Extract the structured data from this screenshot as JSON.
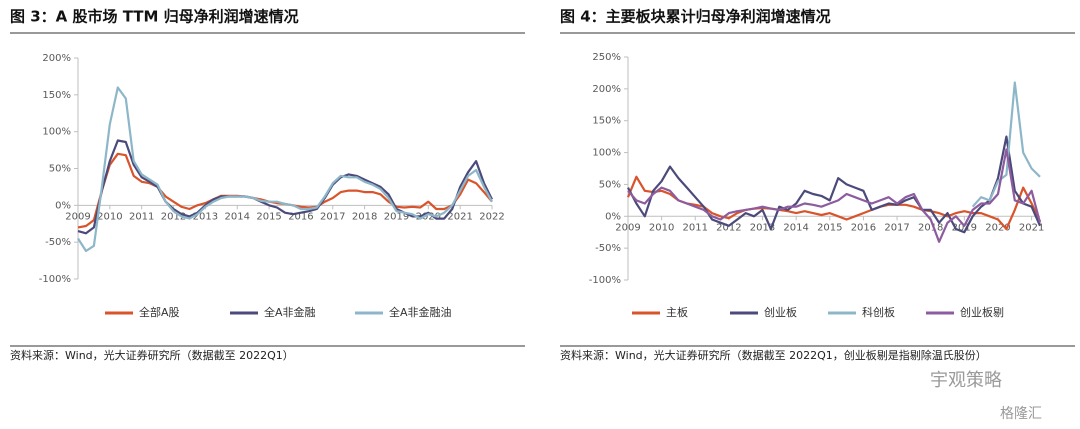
{
  "chart_data": [
    {
      "type": "line",
      "title": "图 3：A 股市场 TTM 归母净利润增速情况",
      "source": "资料来源：Wind，光大证券研究所（数据截至 2022Q1）",
      "x": [
        2009,
        2009.25,
        2009.5,
        2009.75,
        2010,
        2010.25,
        2010.5,
        2010.75,
        2011,
        2011.25,
        2011.5,
        2011.75,
        2012,
        2012.25,
        2012.5,
        2012.75,
        2013,
        2013.25,
        2013.5,
        2013.75,
        2014,
        2014.25,
        2014.5,
        2014.75,
        2015,
        2015.25,
        2015.5,
        2015.75,
        2016,
        2016.25,
        2016.5,
        2016.75,
        2017,
        2017.25,
        2017.5,
        2017.75,
        2018,
        2018.25,
        2018.5,
        2018.75,
        2019,
        2019.25,
        2019.5,
        2019.75,
        2020,
        2020.25,
        2020.5,
        2020.75,
        2021,
        2021.25,
        2021.5,
        2021.75,
        2022
      ],
      "xlim": [
        2009,
        2022
      ],
      "xticks": [
        2009,
        2010,
        2011,
        2012,
        2013,
        2014,
        2015,
        2016,
        2017,
        2018,
        2019,
        2020,
        2021,
        2022
      ],
      "ylim": [
        -100,
        200
      ],
      "yticks": [
        {
          "value": -100,
          "label": "-100%"
        },
        {
          "value": -50,
          "label": "-50%"
        },
        {
          "value": 0,
          "label": "0%"
        },
        {
          "value": 50,
          "label": "50%"
        },
        {
          "value": 100,
          "label": "100%"
        },
        {
          "value": 150,
          "label": "150%"
        },
        {
          "value": 200,
          "label": "200%"
        }
      ],
      "series": [
        {
          "name": "全部A股",
          "color": "#d9532b",
          "values": [
            -30,
            -28,
            -20,
            20,
            55,
            70,
            68,
            40,
            32,
            30,
            25,
            12,
            5,
            -2,
            -5,
            0,
            3,
            8,
            13,
            13,
            13,
            12,
            10,
            8,
            5,
            3,
            2,
            0,
            -2,
            -3,
            -2,
            5,
            10,
            18,
            20,
            20,
            18,
            18,
            15,
            5,
            -2,
            -3,
            -2,
            -3,
            5,
            -5,
            -5,
            0,
            15,
            35,
            30,
            18,
            5
          ]
        },
        {
          "name": "全A非金融",
          "color": "#4b4a7a",
          "values": [
            -35,
            -38,
            -30,
            20,
            60,
            88,
            86,
            55,
            38,
            32,
            25,
            5,
            -5,
            -12,
            -15,
            -10,
            0,
            8,
            12,
            12,
            12,
            12,
            10,
            5,
            0,
            -3,
            -10,
            -12,
            -10,
            -8,
            -5,
            10,
            28,
            38,
            42,
            40,
            35,
            30,
            25,
            15,
            -5,
            -10,
            -15,
            -15,
            -10,
            -18,
            -18,
            -5,
            25,
            45,
            60,
            30,
            8
          ]
        },
        {
          "name": "全A非金融油",
          "color": "#8db7c9",
          "values": [
            -45,
            -62,
            -55,
            25,
            110,
            160,
            145,
            60,
            42,
            35,
            28,
            5,
            -8,
            -15,
            -18,
            -12,
            -2,
            5,
            10,
            12,
            12,
            12,
            10,
            6,
            5,
            5,
            2,
            0,
            -5,
            -5,
            -3,
            12,
            30,
            40,
            38,
            38,
            32,
            28,
            22,
            10,
            -8,
            -10,
            -12,
            -18,
            -12,
            -15,
            -10,
            0,
            20,
            40,
            48,
            25,
            5
          ]
        }
      ]
    },
    {
      "type": "line",
      "title": "图 4：主要板块累计归母净利润增速情况",
      "source": "资料来源：Wind，光大证券研究所（数据截至 2022Q1，创业板剔是指剔除温氏股份）",
      "x": [
        2009,
        2009.25,
        2009.5,
        2009.75,
        2010,
        2010.25,
        2010.5,
        2010.75,
        2011,
        2011.25,
        2011.5,
        2011.75,
        2012,
        2012.25,
        2012.5,
        2012.75,
        2013,
        2013.25,
        2013.5,
        2013.75,
        2014,
        2014.25,
        2014.5,
        2014.75,
        2015,
        2015.25,
        2015.5,
        2015.75,
        2016,
        2016.25,
        2016.5,
        2016.75,
        2017,
        2017.25,
        2017.5,
        2017.75,
        2018,
        2018.25,
        2018.5,
        2018.75,
        2019,
        2019.25,
        2019.5,
        2019.75,
        2020,
        2020.25,
        2020.5,
        2020.75,
        2021,
        2021.25
      ],
      "xlim": [
        2009,
        2021.25
      ],
      "xticks": [
        2009,
        2010,
        2011,
        2012,
        2013,
        2014,
        2015,
        2016,
        2017,
        2018,
        2019,
        2020,
        2021
      ],
      "ylim": [
        -100,
        250
      ],
      "yticks": [
        {
          "value": -100,
          "label": "-100%"
        },
        {
          "value": -50,
          "label": "-50%"
        },
        {
          "value": 0,
          "label": "0%"
        },
        {
          "value": 50,
          "label": "50%"
        },
        {
          "value": 100,
          "label": "100%"
        },
        {
          "value": 150,
          "label": "150%"
        },
        {
          "value": 200,
          "label": "200%"
        },
        {
          "value": 250,
          "label": "250%"
        }
      ],
      "series": [
        {
          "name": "主板",
          "color": "#d9532b",
          "values": [
            30,
            62,
            40,
            38,
            40,
            35,
            25,
            20,
            18,
            15,
            5,
            0,
            -3,
            5,
            10,
            12,
            13,
            12,
            10,
            8,
            5,
            8,
            5,
            2,
            5,
            0,
            -5,
            0,
            5,
            10,
            15,
            18,
            18,
            18,
            15,
            10,
            8,
            5,
            0,
            5,
            8,
            5,
            5,
            0,
            -5,
            -20,
            10,
            45,
            20,
            -8
          ]
        },
        {
          "name": "创业板",
          "color": "#4b4a7a",
          "values": [
            45,
            20,
            0,
            40,
            55,
            78,
            60,
            45,
            30,
            15,
            -5,
            -10,
            -15,
            -5,
            5,
            0,
            10,
            -20,
            15,
            10,
            20,
            40,
            35,
            32,
            25,
            60,
            50,
            45,
            40,
            10,
            15,
            20,
            18,
            25,
            30,
            10,
            10,
            -10,
            5,
            -20,
            -25,
            0,
            15,
            25,
            60,
            125,
            40,
            20,
            15,
            -15
          ]
        },
        {
          "name": "科创板",
          "color": "#8db7c9",
          "values": [
            null,
            null,
            null,
            null,
            null,
            null,
            null,
            null,
            null,
            null,
            null,
            null,
            null,
            null,
            null,
            null,
            null,
            null,
            null,
            null,
            null,
            null,
            null,
            null,
            null,
            null,
            null,
            null,
            null,
            null,
            null,
            null,
            null,
            null,
            null,
            null,
            null,
            null,
            null,
            null,
            null,
            15,
            30,
            25,
            55,
            65,
            210,
            100,
            75,
            62
          ]
        },
        {
          "name": "创业板剔",
          "color": "#8c5c9e",
          "values": [
            40,
            25,
            20,
            35,
            45,
            40,
            25,
            20,
            15,
            10,
            0,
            -5,
            5,
            8,
            10,
            12,
            15,
            12,
            10,
            15,
            15,
            20,
            18,
            15,
            20,
            25,
            35,
            30,
            25,
            20,
            25,
            30,
            20,
            30,
            35,
            10,
            -5,
            -40,
            -10,
            0,
            -15,
            10,
            20,
            20,
            35,
            105,
            25,
            20,
            40,
            -10
          ]
        }
      ]
    }
  ],
  "watermarks": [
    "宇观策略",
    "格隆汇"
  ]
}
